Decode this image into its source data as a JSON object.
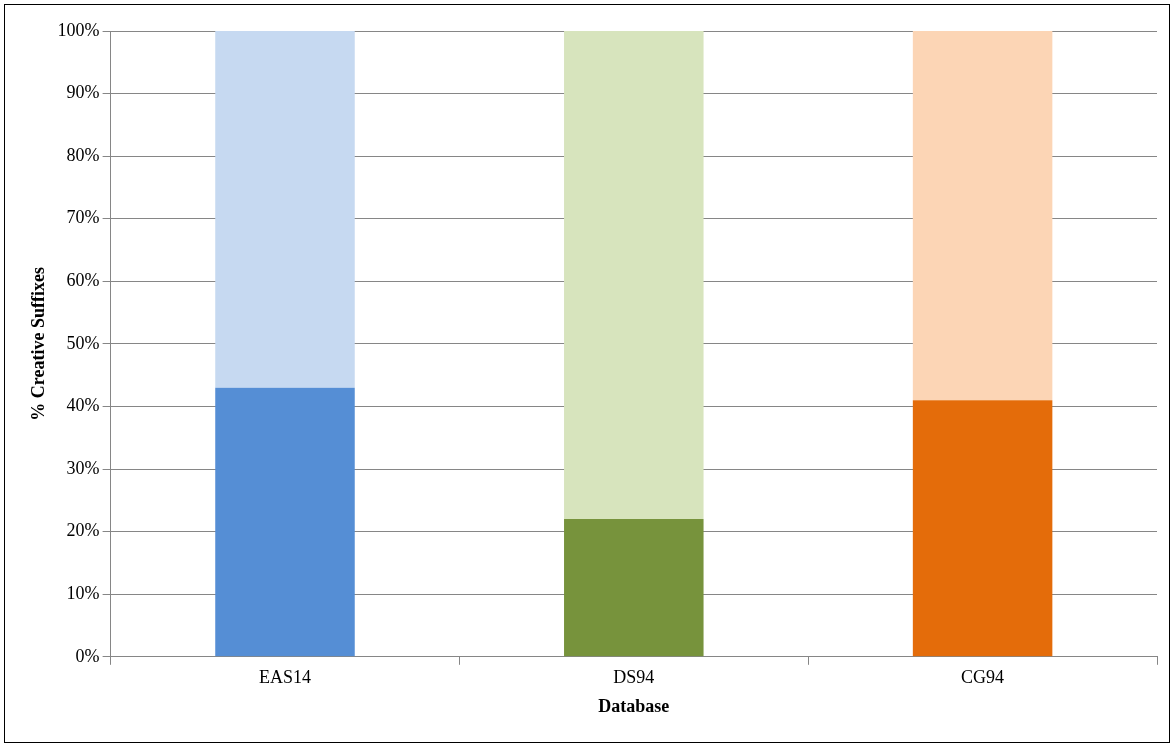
{
  "chart_data": {
    "type": "bar",
    "stacked": true,
    "xlabel": "Database",
    "ylabel": "% Creative Suffixes",
    "categories": [
      "EAS14",
      "DS94",
      "CG94"
    ],
    "series": [
      {
        "colors": [
          "#558ed5",
          "#77933c",
          "#e46c0a"
        ],
        "values": [
          43,
          22,
          41
        ]
      },
      {
        "colors": [
          "#c6d9f1",
          "#d7e4bd",
          "#fcd5b5"
        ],
        "values": [
          57,
          78,
          59
        ]
      }
    ],
    "ylim": [
      0,
      100
    ],
    "yticks": [
      {
        "value": 0,
        "label": "0%"
      },
      {
        "value": 10,
        "label": "10%"
      },
      {
        "value": 20,
        "label": "20%"
      },
      {
        "value": 30,
        "label": "30%"
      },
      {
        "value": 40,
        "label": "40%"
      },
      {
        "value": 50,
        "label": "50%"
      },
      {
        "value": 60,
        "label": "60%"
      },
      {
        "value": 70,
        "label": "70%"
      },
      {
        "value": 80,
        "label": "80%"
      },
      {
        "value": 90,
        "label": "90%"
      },
      {
        "value": 100,
        "label": "100%"
      }
    ],
    "grid": "y",
    "legend": false
  }
}
